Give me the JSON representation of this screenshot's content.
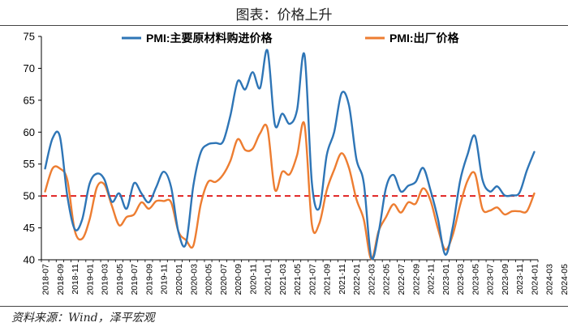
{
  "header": {
    "title": "图表：价格上升"
  },
  "footer": {
    "source": "资料来源：Wind，泽平宏观"
  },
  "chart_data": {
    "type": "line",
    "xlabel": "",
    "ylabel": "",
    "ylim": [
      40,
      75
    ],
    "yticks": [
      40,
      45,
      50,
      55,
      60,
      65,
      70,
      75
    ],
    "grid": false,
    "legend_position": "top",
    "reference_line": {
      "value": 50,
      "color": "#e02020",
      "style": "dashed"
    },
    "x_start": "2018-07",
    "x_tick_labels": [
      "2018-07",
      "2018-09",
      "2018-11",
      "2019-01",
      "2019-03",
      "2019-05",
      "2019-07",
      "2019-09",
      "2019-11",
      "2020-01",
      "2020-03",
      "2020-05",
      "2020-07",
      "2020-09",
      "2020-11",
      "2021-01",
      "2021-03",
      "2021-05",
      "2021-07",
      "2021-09",
      "2021-11",
      "2022-01",
      "2022-03",
      "2022-05",
      "2022-07",
      "2022-09",
      "2022-11",
      "2023-01",
      "2023-03",
      "2023-05",
      "2023-07",
      "2023-09",
      "2023-11",
      "2024-01",
      "2024-03",
      "2024-05"
    ],
    "series": [
      {
        "name": "PMI:主要原材料购进价格",
        "color": "#2e75b6",
        "values": [
          54.3,
          59.0,
          59.3,
          50.0,
          44.8,
          46.3,
          51.9,
          53.5,
          52.6,
          49.1,
          50.4,
          48.0,
          52.0,
          50.4,
          49.0,
          51.4,
          53.8,
          51.4,
          44.3,
          42.5,
          51.6,
          56.8,
          58.1,
          58.3,
          58.5,
          62.6,
          68.0,
          66.7,
          69.4,
          66.9,
          72.8,
          61.2,
          62.9,
          61.3,
          63.5,
          72.1,
          52.0,
          48.1,
          56.4,
          60.0,
          66.1,
          64.2,
          55.8,
          52.0,
          40.4,
          44.3,
          51.3,
          53.3,
          50.7,
          51.6,
          52.2,
          54.4,
          50.9,
          46.4,
          40.8,
          45.1,
          52.4,
          56.5,
          59.4,
          52.6,
          50.7,
          51.5,
          50.1,
          50.1,
          50.5,
          54.0,
          56.9
        ]
      },
      {
        "name": "PMI:出厂价格",
        "color": "#ed7d31",
        "values": [
          50.7,
          54.3,
          54.3,
          52.5,
          44.6,
          43.3,
          46.3,
          51.4,
          51.8,
          48.5,
          45.4,
          46.7,
          47.1,
          49.0,
          48.0,
          49.2,
          49.2,
          49.0,
          44.4,
          43.1,
          42.2,
          48.7,
          52.2,
          52.2,
          53.3,
          55.5,
          58.9,
          57.2,
          57.4,
          59.8,
          60.6,
          51.0,
          53.8,
          53.4,
          56.4,
          61.2,
          45.5,
          45.7,
          50.9,
          54.1,
          56.7,
          54.4,
          49.5,
          46.3,
          40.1,
          44.5,
          46.7,
          48.7,
          47.4,
          49.0,
          48.8,
          51.2,
          49.3,
          44.9,
          41.6,
          43.9,
          48.6,
          52.4,
          53.5,
          48.0,
          47.7,
          48.2,
          47.1,
          47.6,
          47.6,
          47.6,
          50.4
        ]
      }
    ]
  }
}
